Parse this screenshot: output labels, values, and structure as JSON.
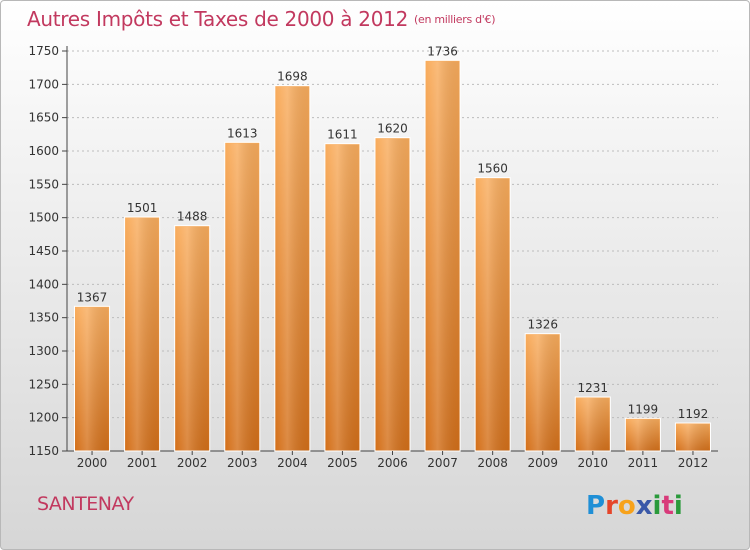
{
  "header": {
    "title": "Autres Impôts et Taxes de 2000 à 2012",
    "unit": "(en milliers d'€)"
  },
  "footer": {
    "commune": "SANTENAY",
    "logo": "Proxiti"
  },
  "colors": {
    "title": "#c2395f",
    "bar_light": "#f7a552",
    "bar_dark": "#d8731c",
    "grid": "#bcbcbc"
  },
  "chart_data": {
    "type": "bar",
    "title": "Autres Impôts et Taxes de 2000 à 2012",
    "subtitle": "(en milliers d'€)",
    "xlabel": "",
    "ylabel": "",
    "categories": [
      "2000",
      "2001",
      "2002",
      "2003",
      "2004",
      "2005",
      "2006",
      "2007",
      "2008",
      "2009",
      "2010",
      "2011",
      "2012"
    ],
    "values": [
      1367,
      1501,
      1488,
      1613,
      1698,
      1611,
      1620,
      1736,
      1560,
      1326,
      1231,
      1199,
      1192
    ],
    "ylim": [
      1150,
      1750
    ],
    "yticks": [
      1150,
      1200,
      1250,
      1300,
      1350,
      1400,
      1450,
      1500,
      1550,
      1600,
      1650,
      1700,
      1750
    ],
    "grid": true,
    "data_labels": true
  }
}
